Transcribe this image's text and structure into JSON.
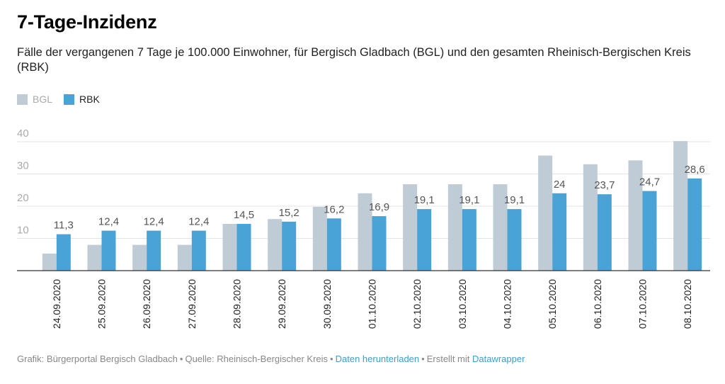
{
  "header": {
    "title": "7-Tage-Inzidenz",
    "subtitle": "Fälle der vergangenen 7 Tage je 100.000 Einwohner, für Bergisch Gladbach (BGL) und den gesamten Rheinisch-Bergischen Kreis (RBK)"
  },
  "legend": [
    {
      "label": "BGL",
      "color": "#bfccd6"
    },
    {
      "label": "RBK",
      "color": "#4aa3d6"
    }
  ],
  "footer": {
    "graphic": "Grafik: Bürgerportal Bergisch Gladbach",
    "source": "Quelle: Rheinisch-Bergischer Kreis",
    "download": "Daten herunterladen",
    "created_with": "Erstellt mit",
    "datawrapper": "Datawrapper"
  },
  "chart_data": {
    "type": "bar",
    "title": "7-Tage-Inzidenz",
    "subtitle": "Fälle der vergangenen 7 Tage je 100.000 Einwohner, für Bergisch Gladbach (BGL) und den gesamten Rheinisch-Bergischen Kreis (RBK)",
    "categories": [
      "24.09.2020",
      "25.09.2020",
      "26.09.2020",
      "27.09.2020",
      "28.09.2020",
      "29.09.2020",
      "30.09.2020",
      "01.10.2020",
      "02.10.2020",
      "03.10.2020",
      "04.10.2020",
      "05.10.2020",
      "06.10.2020",
      "07.10.2020",
      "08.10.2020"
    ],
    "series": [
      {
        "name": "BGL",
        "color": "#bfccd6",
        "values": [
          5.3,
          8.0,
          8.0,
          8.0,
          14.5,
          16.0,
          19.8,
          24.0,
          26.8,
          26.8,
          26.8,
          35.7,
          33.0,
          34.2,
          40.2
        ]
      },
      {
        "name": "RBK",
        "color": "#4aa3d6",
        "values": [
          11.3,
          12.4,
          12.4,
          12.4,
          14.5,
          15.2,
          16.2,
          16.9,
          19.1,
          19.1,
          19.1,
          24,
          23.7,
          24.7,
          28.6
        ],
        "labels": [
          "11,3",
          "12,4",
          "12,4",
          "12,4",
          "14,5",
          "15,2",
          "16,2",
          "16,9",
          "19,1",
          "19,1",
          "19,1",
          "24",
          "23,7",
          "24,7",
          "28,6"
        ]
      }
    ],
    "ylim": [
      0,
      40
    ],
    "yticks": [
      10,
      20,
      30,
      40
    ],
    "grid": true,
    "legend_position": "top-left",
    "xlabel": "",
    "ylabel": ""
  }
}
